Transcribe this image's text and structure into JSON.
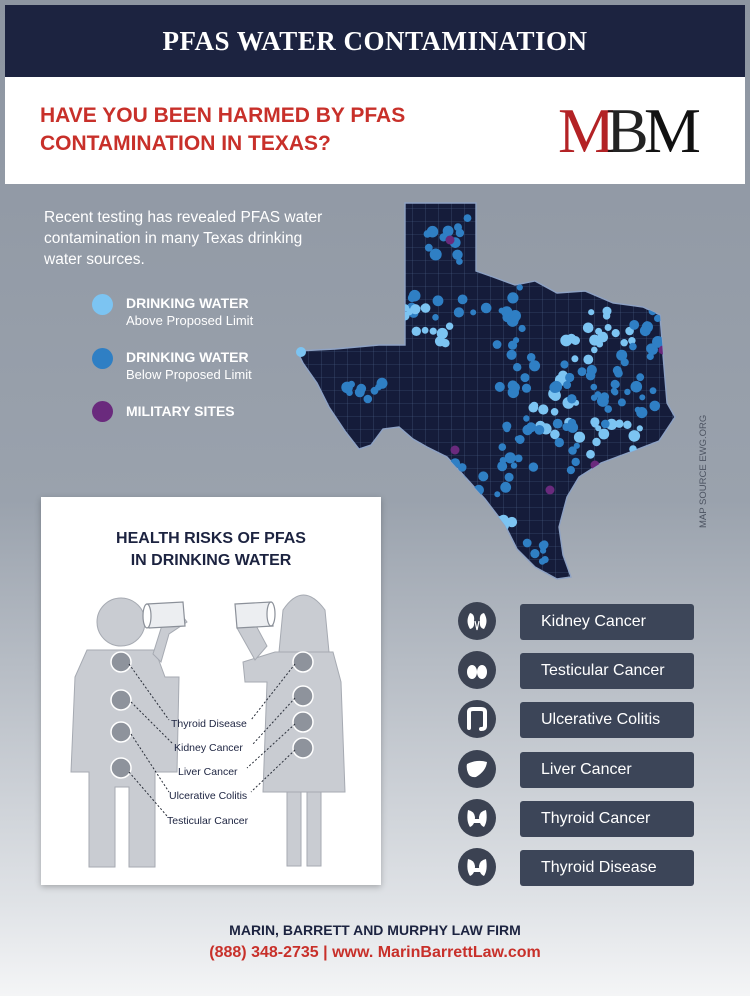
{
  "header": {
    "title": "PFAS WATER CONTAMINATION"
  },
  "headline": {
    "line1": "HAVE YOU BEEN HARMED BY PFAS",
    "line2": "CONTAMINATION IN TEXAS?"
  },
  "logo": {
    "text": "MBM"
  },
  "intro": {
    "text": "Recent testing has revealed PFAS water contamination in many Texas drinking water sources."
  },
  "legend": [
    {
      "title": "DRINKING WATER",
      "subtitle": "Above Proposed Limit",
      "color": "#7cc4f2",
      "icon": "light-blue-dot-icon"
    },
    {
      "title": "DRINKING WATER",
      "subtitle": "Below Proposed Limit",
      "color": "#2f7fc4",
      "icon": "blue-dot-icon"
    },
    {
      "title": "MILITARY SITES",
      "subtitle": "",
      "color": "#6a2a7d",
      "icon": "purple-dot-icon"
    }
  ],
  "map": {
    "source": "MAP SOURCE EWG.ORG"
  },
  "health": {
    "title_line1": "HEALTH RISKS OF PFAS",
    "title_line2": "IN DRINKING WATER",
    "labels": [
      "Thyroid Disease",
      "Kidney Cancer",
      "Liver Cancer",
      "Ulcerative Colitis",
      "Testicular Cancer"
    ]
  },
  "risks": [
    {
      "label": "Kidney Cancer",
      "icon": "kidney-icon"
    },
    {
      "label": "Testicular Cancer",
      "icon": "testicles-icon"
    },
    {
      "label": "Ulcerative Colitis",
      "icon": "colon-icon"
    },
    {
      "label": "Liver Cancer",
      "icon": "liver-icon"
    },
    {
      "label": "Thyroid Cancer",
      "icon": "thyroid-icon"
    },
    {
      "label": "Thyroid Disease",
      "icon": "thyroid-icon"
    }
  ],
  "footer": {
    "firm": "MARIN, BARRETT AND MURPHY LAW FIRM",
    "phone": "(888) 348-2735",
    "separator": "|",
    "website": "www. MarinBarrettLaw.com"
  },
  "colors": {
    "navy": "#1c2340",
    "red": "#c8302a",
    "pill": "#3c4558"
  }
}
